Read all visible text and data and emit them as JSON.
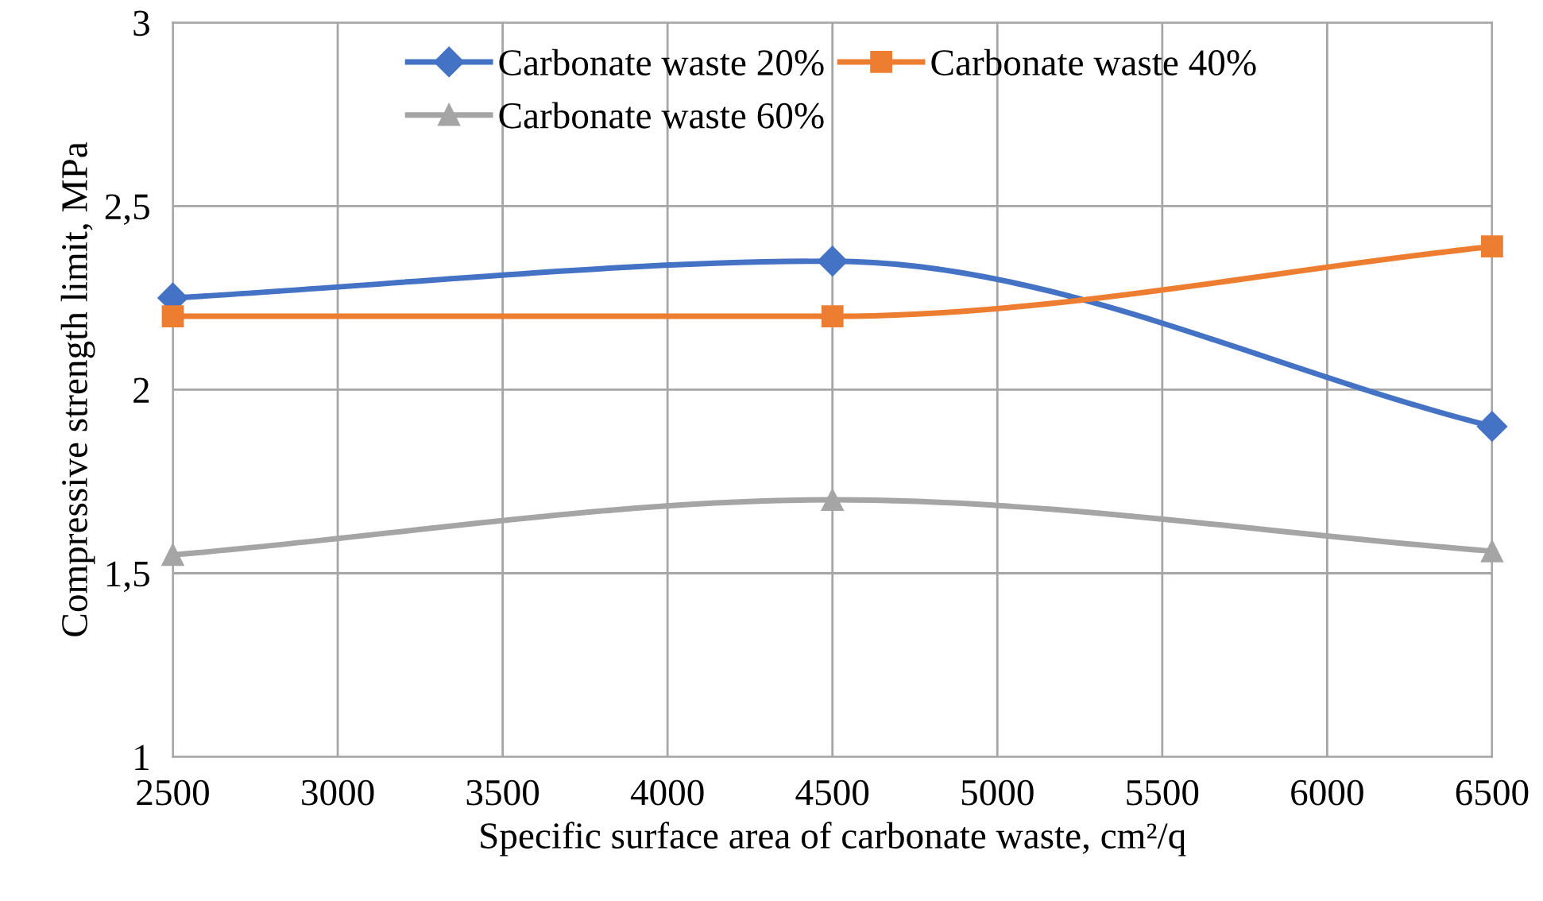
{
  "chart_data": {
    "type": "line",
    "xlabel": "Specific surface area of carbonate waste, cm²/q",
    "ylabel": "Compressive strength limit, MPa",
    "x": [
      2500,
      4500,
      6500
    ],
    "series": [
      {
        "name": "Carbonate waste 20%",
        "color": "#4472c4",
        "marker": "diamond",
        "values": [
          2.25,
          2.35,
          1.9
        ]
      },
      {
        "name": "Carbonate waste 40%",
        "color": "#ed7d31",
        "marker": "square",
        "values": [
          2.2,
          2.2,
          2.39
        ]
      },
      {
        "name": "Carbonate waste 60%",
        "color": "#a5a5a5",
        "marker": "triangle",
        "values": [
          1.55,
          1.7,
          1.56
        ]
      }
    ],
    "xlim": [
      2500,
      6500
    ],
    "xticks": [
      2500,
      3000,
      3500,
      4000,
      4500,
      5000,
      5500,
      6000,
      6500
    ],
    "ylim": [
      1,
      3
    ],
    "yticks": [
      1,
      {
        "value": 1.5,
        "label": "1,5"
      },
      2,
      {
        "value": 2.5,
        "label": "2,5"
      },
      3
    ],
    "grid": true,
    "legend": "top",
    "line_style": "solid"
  }
}
